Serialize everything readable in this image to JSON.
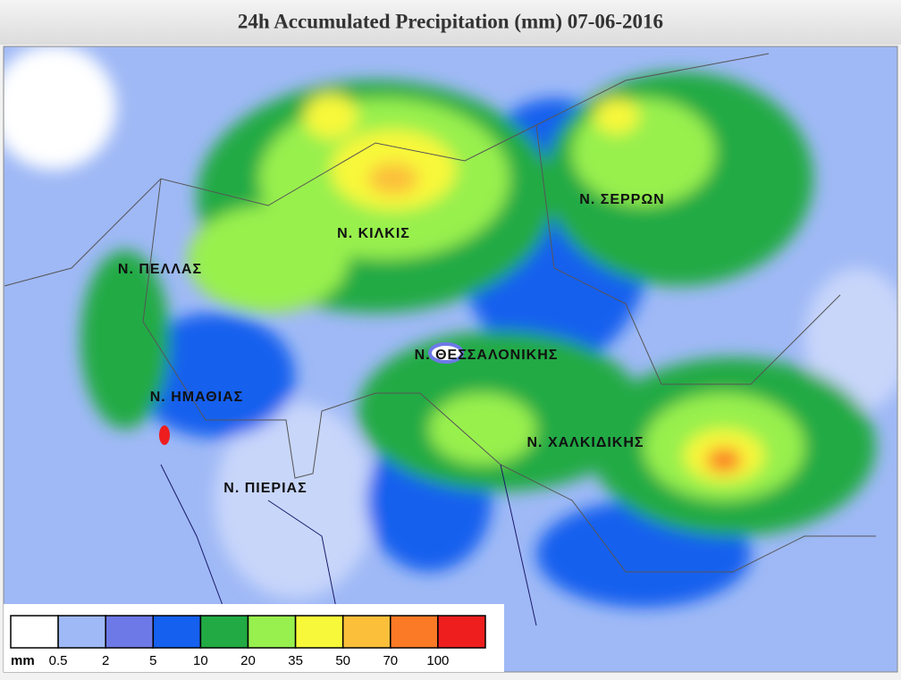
{
  "header": {
    "title": "24h Accumulated Precipitation (mm) 07-06-2016"
  },
  "map": {
    "labels": [
      "Ν. ΚΙΛΚΙΣ",
      "Ν. ΣΕΡΡΩΝ",
      "Ν. ΠΕΛΛΑΣ",
      "Ν. ΘΕΣΣΑΛΟΝΙΚΗΣ",
      "Ν. ΗΜΑΘΙΑΣ",
      "Ν. ΧΑΛΚΙΔΙΚΗΣ",
      "Ν. ΠΙΕΡΙΑΣ"
    ]
  },
  "legend": {
    "unit": "mm",
    "colors": [
      "#ffffff",
      "#9fb9f6",
      "#6d79e6",
      "#1560ee",
      "#22aa44",
      "#98f04e",
      "#f8f83a",
      "#fbbf3a",
      "#fb7a26",
      "#ee1e1e"
    ],
    "ticks": [
      0.5,
      2,
      5,
      10,
      20,
      35,
      50,
      70,
      100
    ]
  }
}
